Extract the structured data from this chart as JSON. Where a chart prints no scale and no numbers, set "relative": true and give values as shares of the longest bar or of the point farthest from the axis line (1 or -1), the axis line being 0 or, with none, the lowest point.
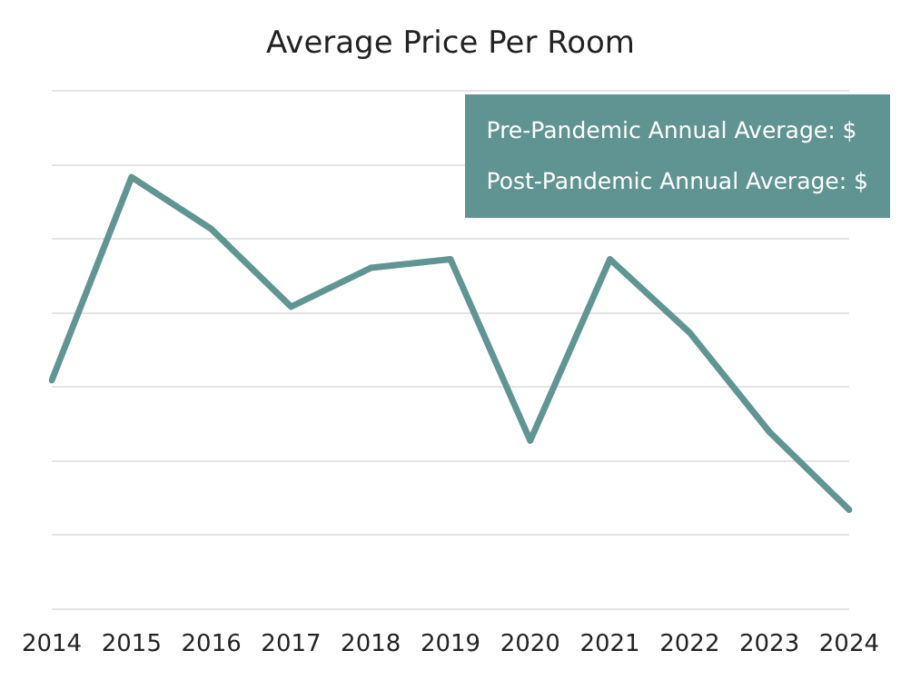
{
  "chart_data": {
    "type": "line",
    "title": "Average Price Per Room",
    "relative": true,
    "categories": [
      "2014",
      "2015",
      "2016",
      "2017",
      "2018",
      "2019",
      "2020",
      "2021",
      "2022",
      "2023",
      "2024"
    ],
    "series": [
      {
        "color": "#5f9593",
        "values": [
          0.53,
          1,
          0.88,
          0.7,
          0.79,
          0.81,
          0.39,
          0.81,
          0.64,
          0.41,
          0.23
        ]
      }
    ],
    "annotations": [
      "Pre-Pandemic Annual Average: $",
      "Post-Pandemic Annual Average: $"
    ],
    "grid": "y",
    "legend": false,
    "marker": "none",
    "line_style": "solid"
  }
}
